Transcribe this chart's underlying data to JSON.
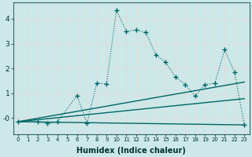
{
  "xlabel": "Humidex (Indice chaleur)",
  "background_color": "#cce8e8",
  "grid_color": "#d4e8e0",
  "line_color": "#006666",
  "xlim": [
    -0.5,
    23.5
  ],
  "ylim": [
    -0.65,
    4.65
  ],
  "xticks": [
    0,
    1,
    2,
    3,
    4,
    5,
    6,
    7,
    8,
    9,
    10,
    11,
    12,
    13,
    14,
    15,
    16,
    17,
    18,
    19,
    20,
    21,
    22,
    23
  ],
  "yticks": [
    0,
    1,
    2,
    3,
    4
  ],
  "ytick_labels": [
    "-0",
    "1",
    "2",
    "3",
    "4"
  ],
  "main_x": [
    0,
    2,
    3,
    4,
    6,
    7,
    8,
    9,
    10,
    11,
    12,
    13,
    14,
    15,
    16,
    17,
    18,
    19,
    20,
    21,
    22,
    23
  ],
  "main_y": [
    -0.15,
    -0.15,
    -0.22,
    -0.15,
    0.9,
    -0.22,
    1.4,
    1.38,
    4.35,
    3.5,
    3.55,
    3.45,
    2.55,
    2.25,
    1.65,
    1.35,
    0.88,
    1.35,
    1.4,
    2.75,
    1.85,
    -0.28
  ],
  "trend1_x": [
    0,
    23
  ],
  "trend1_y": [
    -0.15,
    -0.28
  ],
  "trend2_x": [
    0,
    23
  ],
  "trend2_y": [
    -0.15,
    0.78
  ],
  "trend3_x": [
    0,
    23
  ],
  "trend3_y": [
    -0.15,
    1.45
  ]
}
